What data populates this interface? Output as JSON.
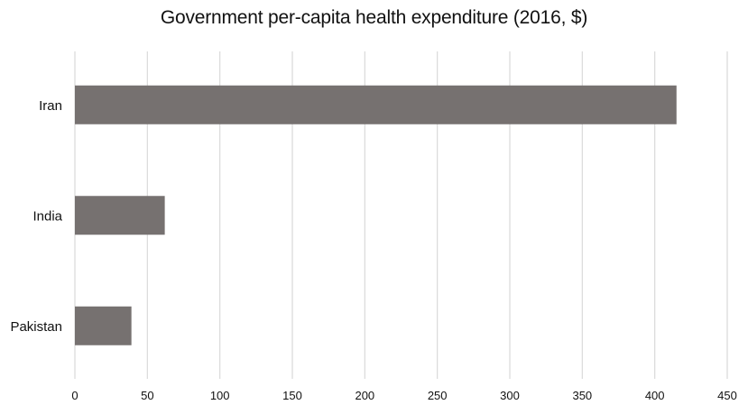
{
  "chart_data": {
    "type": "bar",
    "orientation": "horizontal",
    "title": "Government per-capita health expenditure (2016, $)",
    "xlabel": "",
    "ylabel": "",
    "categories": [
      "Iran",
      "India",
      "Pakistan"
    ],
    "values": [
      415,
      62,
      39
    ],
    "xlim": [
      0,
      450
    ],
    "xticks": [
      "0",
      "50",
      "100",
      "150",
      "200",
      "250",
      "300",
      "350",
      "400",
      "450"
    ],
    "grid": "vertical",
    "legend": "none",
    "colors": {
      "bar": "#767170",
      "grid": "#d9d9d9",
      "text": "#111111"
    }
  }
}
